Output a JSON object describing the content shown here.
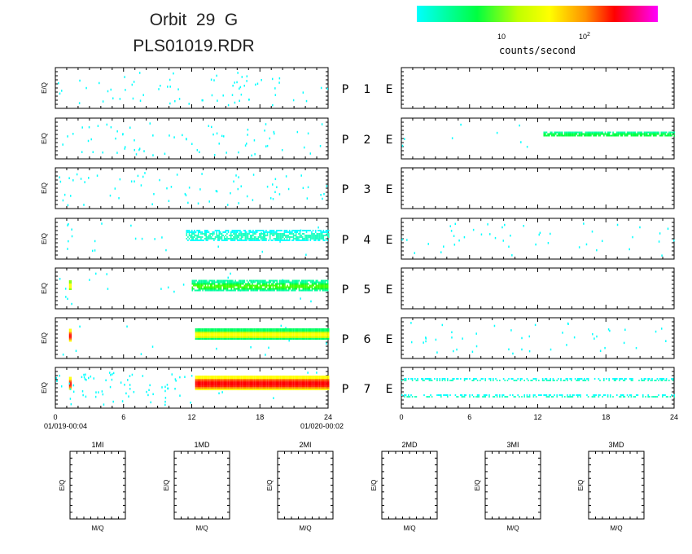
{
  "header": {
    "title_line1": "Orbit  29  G",
    "title_line2": "PLS01019.RDR"
  },
  "colorbar": {
    "label": "counts/second",
    "tick_10": "10",
    "tick_100_base": "10",
    "tick_100_exp": "2",
    "colors": [
      "#00ffff",
      "#00ff80",
      "#00ff00",
      "#80ff00",
      "#ffff00",
      "#ffa000",
      "#ff0000",
      "#ff00a0",
      "#ff00ff"
    ]
  },
  "axes": {
    "ylabel": "E/Q",
    "xticks": [
      "0",
      "6",
      "12",
      "18",
      "24"
    ],
    "start_label": "01/019-00:04",
    "end_label": "01/020-00:02",
    "histogram_xlabel": "M/Q",
    "histogram_ylabel": "E/Q"
  },
  "panels": [
    {
      "p": "P",
      "num": "1",
      "e": "E"
    },
    {
      "p": "P",
      "num": "2",
      "e": "E"
    },
    {
      "p": "P",
      "num": "3",
      "e": "E"
    },
    {
      "p": "P",
      "num": "4",
      "e": "E"
    },
    {
      "p": "P",
      "num": "5",
      "e": "E"
    },
    {
      "p": "P",
      "num": "6",
      "e": "E"
    },
    {
      "p": "P",
      "num": "7",
      "e": "E"
    }
  ],
  "histograms": [
    "1MI",
    "1MD",
    "2MI",
    "2MD",
    "3MI",
    "3MD"
  ],
  "chart_data": {
    "type": "heatmap",
    "description_units": "x = hours since start (0-24)",
    "xlim": [
      0,
      24
    ],
    "left_column": [
      {
        "panel": "P1",
        "activity": "sparse",
        "bands": []
      },
      {
        "panel": "P2",
        "activity": "sparse",
        "bands": []
      },
      {
        "panel": "P3",
        "activity": "sparse",
        "bands": []
      },
      {
        "panel": "P4",
        "activity": "band",
        "bands": [
          {
            "x_start": 11.5,
            "x_end": 24,
            "level": "low"
          }
        ]
      },
      {
        "panel": "P5",
        "activity": "band",
        "bands": [
          {
            "x_start": 12,
            "x_end": 24,
            "level": "low-mid"
          },
          {
            "x_start": 1.2,
            "x_end": 1.4,
            "level": "mid"
          }
        ]
      },
      {
        "panel": "P6",
        "activity": "band",
        "bands": [
          {
            "x_start": 12.3,
            "x_end": 24,
            "level": "mid-high"
          },
          {
            "x_start": 1.2,
            "x_end": 1.4,
            "level": "high"
          }
        ]
      },
      {
        "panel": "P7",
        "activity": "band",
        "bands": [
          {
            "x_start": 12.3,
            "x_end": 24,
            "level": "high"
          },
          {
            "x_start": 1.2,
            "x_end": 1.4,
            "level": "high"
          }
        ]
      }
    ],
    "right_column": [
      {
        "panel": "E1",
        "activity": "empty"
      },
      {
        "panel": "E2",
        "activity": "band",
        "bands": [
          {
            "x_start": 12.5,
            "x_end": 24,
            "level": "low-mid"
          }
        ]
      },
      {
        "panel": "E3",
        "activity": "empty"
      },
      {
        "panel": "E4",
        "activity": "sparse"
      },
      {
        "panel": "E5",
        "activity": "empty"
      },
      {
        "panel": "E6",
        "activity": "sparse"
      },
      {
        "panel": "E7",
        "activity": "band",
        "bands": [
          {
            "x_start": 0,
            "x_end": 24,
            "level": "low"
          }
        ]
      }
    ]
  }
}
